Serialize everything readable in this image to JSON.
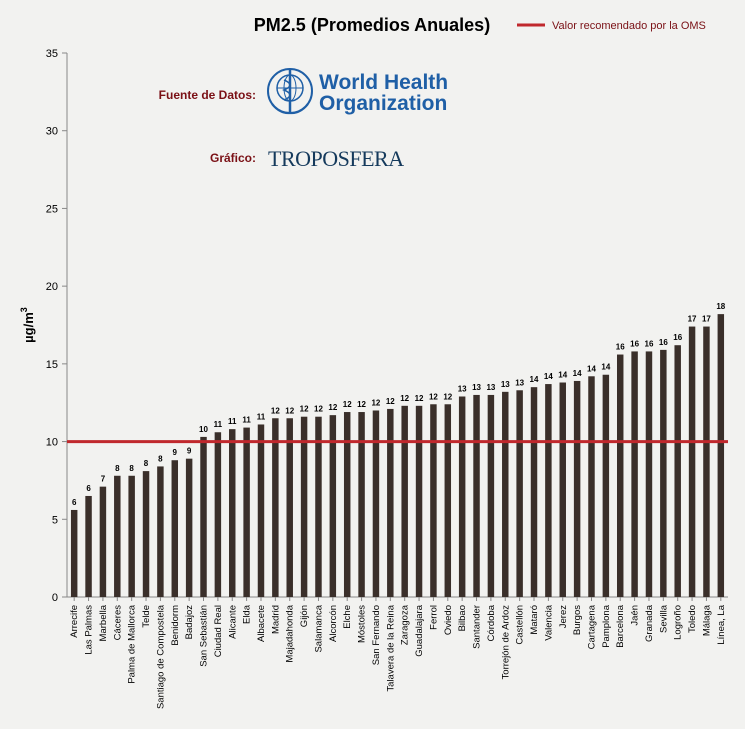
{
  "chart_data": {
    "type": "bar",
    "title": "PM2.5 (Promedios Anuales)",
    "ylabel": "µg/m",
    "ylabel_sup": "3",
    "xlabel": "",
    "ylim": [
      0,
      35
    ],
    "yticks": [
      0,
      5,
      10,
      15,
      20,
      25,
      30,
      35
    ],
    "grid": false,
    "legend_position": "top-right",
    "categories": [
      "Arrecife",
      "Las Palmas",
      "Marbella",
      "Cáceres",
      "Palma de Mallorca",
      "Telde",
      "Santiago de Compostela",
      "Benidorm",
      "Badajoz",
      "San Sebastián",
      "Ciudad Real",
      "Alicante",
      "Elda",
      "Albacete",
      "Madrid",
      "Majadahonda",
      "Gijón",
      "Salamanca",
      "Alcorcón",
      "Elche",
      "Móstoles",
      "San Fernando",
      "Talavera de la Reina",
      "Zaragoza",
      "Guadalajara",
      "Ferrol",
      "Oviedo",
      "Bilbao",
      "Santander",
      "Córdoba",
      "Torrejón de Ardoz",
      "Castellón",
      "Mataró",
      "Valencia",
      "Jerez",
      "Burgos",
      "Cartagena",
      "Pamplona",
      "Barcelona",
      "Jaén",
      "Granada",
      "Sevilla",
      "Logroño",
      "Toledo",
      "Málaga",
      "Línea, La"
    ],
    "values": [
      5.6,
      6.5,
      7.1,
      7.8,
      7.8,
      8.1,
      8.4,
      8.8,
      8.9,
      10.3,
      10.6,
      10.8,
      10.9,
      11.1,
      11.5,
      11.5,
      11.6,
      11.6,
      11.7,
      11.9,
      11.9,
      12.0,
      12.1,
      12.3,
      12.3,
      12.4,
      12.4,
      12.9,
      13.0,
      13.0,
      13.2,
      13.3,
      13.5,
      13.7,
      13.8,
      13.9,
      14.2,
      14.3,
      15.6,
      15.8,
      15.8,
      15.9,
      16.2,
      17.4,
      17.4,
      18.2
    ],
    "data_labels": [
      "6",
      "6",
      "7",
      "8",
      "8",
      "8",
      "8",
      "9",
      "9",
      "10",
      "11",
      "11",
      "11",
      "11",
      "12",
      "12",
      "12",
      "12",
      "12",
      "12",
      "12",
      "12",
      "12",
      "12",
      "12",
      "12",
      "12",
      "13",
      "13",
      "13",
      "13",
      "13",
      "14",
      "14",
      "14",
      "14",
      "14",
      "14",
      "16",
      "16",
      "16",
      "16",
      "16",
      "17",
      "17",
      "18"
    ],
    "reference_line": {
      "value": 10,
      "label": "Valor recomendado por la OMS",
      "color": "#c0282d"
    },
    "colors": {
      "bar": "#3a2f2a",
      "reference": "#c0282d",
      "label_text": "#7a1015"
    },
    "source_label": "Fuente de Datos:",
    "source_logo_text": [
      "World Health",
      "Organization"
    ],
    "graphic_label": "Gráfico:",
    "graphic_logo_text": "TROPOSFERA"
  }
}
